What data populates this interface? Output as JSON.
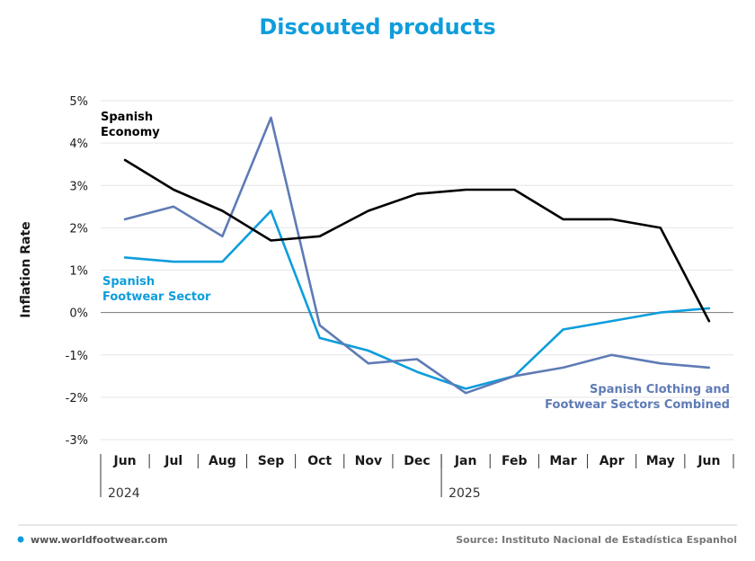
{
  "colors": {
    "economy": "#000000",
    "footwear": "#0e9ddc",
    "combined": "#5f7bb5",
    "title": "#0e9ddc",
    "grid": "#e6e6e6",
    "zero": "#777777"
  },
  "footer": {
    "website": "www.worldfootwear.com",
    "source": "Source: Instituto Nacional de Estadística Espanhol"
  },
  "chart_data": {
    "type": "line",
    "title": "Discouted products",
    "xlabel": "",
    "ylabel": "Inflation Rate",
    "ylim": [
      -3,
      5
    ],
    "yticks": [
      5,
      4,
      3,
      2,
      1,
      0,
      -1,
      -2,
      -3
    ],
    "ytick_labels": [
      "5%",
      "4%",
      "3%",
      "2%",
      "1%",
      "0%",
      "-1%",
      "-2%",
      "-3%"
    ],
    "categories": [
      "Jun",
      "Jul",
      "Aug",
      "Sep",
      "Oct",
      "Nov",
      "Dec",
      "Jan",
      "Feb",
      "Mar",
      "Apr",
      "May",
      "Jun"
    ],
    "years": [
      {
        "label": "2024",
        "start_index": 0
      },
      {
        "label": "2025",
        "start_index": 7
      }
    ],
    "series": [
      {
        "name": "Spanish Economy",
        "label_lines": [
          "Spanish",
          "Economy"
        ],
        "color_key": "economy",
        "values": [
          3.6,
          2.9,
          2.4,
          1.7,
          1.8,
          2.4,
          2.8,
          2.9,
          2.9,
          2.2,
          2.2,
          2.0,
          -0.2
        ]
      },
      {
        "name": "Spanish Footwear Sector",
        "label_lines": [
          "Spanish",
          "Footwear Sector"
        ],
        "color_key": "footwear",
        "values": [
          1.3,
          1.2,
          1.2,
          2.4,
          -0.6,
          -0.9,
          -1.4,
          -1.8,
          -1.5,
          -0.4,
          -0.2,
          0.0,
          0.1
        ]
      },
      {
        "name": "Spanish Clothing and Footwear Sectors Combined",
        "label_lines": [
          "Spanish Clothing and",
          "Footwear Sectors Combined"
        ],
        "color_key": "combined",
        "values": [
          2.2,
          2.5,
          1.8,
          4.6,
          -0.3,
          -1.2,
          -1.1,
          -1.9,
          -1.5,
          -1.3,
          -1.0,
          -1.2,
          -1.3
        ]
      }
    ]
  }
}
